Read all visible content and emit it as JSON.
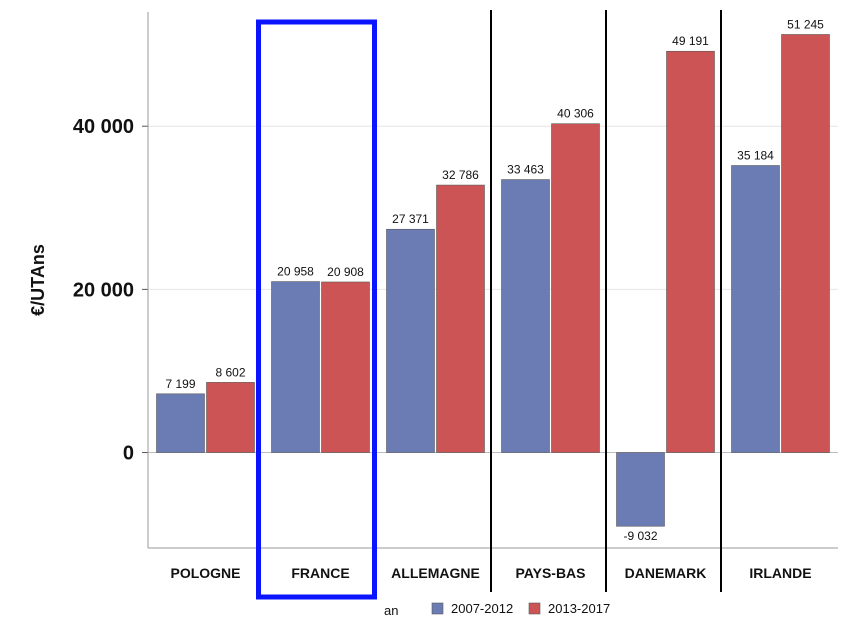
{
  "chart_data": {
    "type": "bar",
    "title": "",
    "xlabel": "",
    "ylabel": "€/UTAns",
    "categories": [
      "POLOGNE",
      "FRANCE",
      "ALLEMAGNE",
      "PAYS-BAS",
      "DANEMARK",
      "IRLANDE"
    ],
    "series": [
      {
        "name": "2007-2012",
        "color": "#6b7bb3",
        "values": [
          7199,
          20958,
          27371,
          33463,
          -9032,
          35184
        ],
        "labels": [
          "7 199",
          "20 958",
          "27 371",
          "33 463",
          "-9 032",
          "35 184"
        ]
      },
      {
        "name": "2013-2017",
        "color": "#cd5454",
        "values": [
          8602,
          20908,
          32786,
          40306,
          49191,
          51245
        ],
        "labels": [
          "8 602",
          "20 908",
          "32 786",
          "40 306",
          "49 191",
          "51 245"
        ]
      }
    ],
    "ylim": [
      -11700,
      54000
    ],
    "yticks": [
      0,
      20000,
      40000
    ],
    "ytick_labels": [
      "0",
      "20 000",
      "40 000"
    ],
    "grid": true,
    "legend": {
      "title": "an",
      "position": "bottom"
    },
    "highlight": {
      "category": "FRANCE",
      "color": "#0a14ff"
    },
    "separators_after": [
      "ALLEMAGNE",
      "PAYS-BAS",
      "DANEMARK"
    ]
  }
}
